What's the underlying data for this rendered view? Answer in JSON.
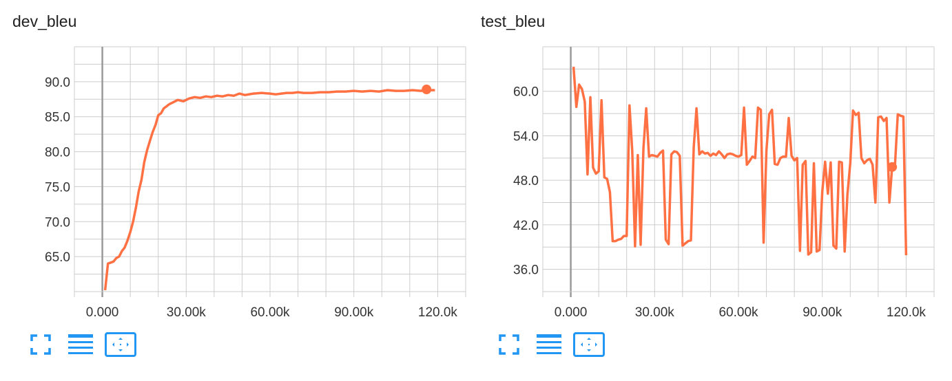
{
  "chart_data": [
    {
      "type": "line",
      "title": "dev_bleu",
      "xlabel": "",
      "ylabel": "",
      "xlim": [
        -10000,
        130000
      ],
      "ylim": [
        60,
        95
      ],
      "x_ticks": [
        0,
        30000,
        60000,
        90000,
        120000
      ],
      "x_tick_labels": [
        "0.000",
        "30.00k",
        "60.00k",
        "90.00k",
        "120.0k"
      ],
      "y_ticks": [
        65,
        70,
        75,
        80,
        85,
        90
      ],
      "y_tick_labels": [
        "65.0",
        "70.0",
        "75.0",
        "80.0",
        "85.0",
        "90.0"
      ],
      "grid": true,
      "series": [
        {
          "color": "#ff7043",
          "x": [
            1000,
            2000,
            4000,
            5000,
            6000,
            7000,
            8000,
            9000,
            10000,
            11000,
            12000,
            13000,
            14000,
            15000,
            16000,
            17000,
            18000,
            19000,
            20000,
            21000,
            22000,
            23000,
            24000,
            25000,
            27000,
            29000,
            31000,
            33000,
            35000,
            37000,
            39000,
            41000,
            43000,
            45000,
            47000,
            49000,
            51000,
            54000,
            57000,
            60000,
            62000,
            64000,
            66000,
            68000,
            70000,
            72000,
            75000,
            78000,
            81000,
            84000,
            87000,
            90000,
            93000,
            96000,
            99000,
            102000,
            105000,
            108000,
            111000,
            114000,
            115500,
            116500,
            119000
          ],
          "y": [
            60.2,
            64.0,
            64.3,
            64.8,
            65.0,
            65.8,
            66.3,
            67.3,
            68.5,
            70.0,
            72.0,
            74.3,
            76.0,
            78.5,
            80.2,
            81.5,
            82.8,
            83.8,
            85.2,
            85.5,
            86.2,
            86.5,
            86.8,
            87.0,
            87.4,
            87.2,
            87.6,
            87.8,
            87.7,
            87.9,
            87.8,
            88.0,
            87.9,
            88.1,
            88.0,
            88.3,
            88.1,
            88.3,
            88.4,
            88.3,
            88.2,
            88.3,
            88.4,
            88.4,
            88.5,
            88.4,
            88.4,
            88.5,
            88.5,
            88.6,
            88.6,
            88.7,
            88.6,
            88.7,
            88.6,
            88.8,
            88.7,
            88.7,
            88.8,
            88.7,
            88.8,
            88.8,
            88.8
          ]
        }
      ],
      "highlight": {
        "x": 116000,
        "y": 88.9
      }
    },
    {
      "type": "line",
      "title": "test_bleu",
      "xlabel": "",
      "ylabel": "",
      "xlim": [
        -10000,
        130000
      ],
      "ylim": [
        33,
        66
      ],
      "x_ticks": [
        0,
        30000,
        60000,
        90000,
        120000
      ],
      "x_tick_labels": [
        "0.000",
        "30.00k",
        "60.00k",
        "90.00k",
        "120.0k"
      ],
      "y_ticks": [
        36,
        42,
        48,
        54,
        60
      ],
      "y_tick_labels": [
        "36.0",
        "42.0",
        "48.0",
        "54.0",
        "60.0"
      ],
      "grid": true,
      "series": [
        {
          "color": "#ff7043",
          "x": [
            1000,
            2000,
            3000,
            4000,
            5000,
            6000,
            7000,
            8000,
            9000,
            10000,
            11000,
            12000,
            13000,
            14000,
            15000,
            16000,
            17000,
            18000,
            19000,
            20000,
            21000,
            22000,
            23000,
            24000,
            25000,
            26000,
            27000,
            28000,
            29000,
            30000,
            31000,
            32000,
            33000,
            34000,
            35000,
            36000,
            37000,
            38000,
            39000,
            40000,
            41000,
            42000,
            43000,
            44000,
            45000,
            46000,
            47000,
            48000,
            49000,
            50000,
            51000,
            52000,
            53000,
            54000,
            55000,
            56000,
            57000,
            58000,
            59000,
            60000,
            61000,
            62000,
            63000,
            64000,
            65000,
            66000,
            67000,
            68000,
            69000,
            70000,
            71000,
            72000,
            73000,
            74000,
            75000,
            76000,
            77000,
            78000,
            79000,
            80000,
            81000,
            82000,
            83000,
            84000,
            85000,
            86000,
            87000,
            88000,
            89000,
            90000,
            91000,
            92000,
            93000,
            94000,
            95000,
            96000,
            97000,
            98000,
            99000,
            100000,
            101000,
            102000,
            103000,
            104000,
            105000,
            106000,
            107000,
            108000,
            109000,
            110000,
            111000,
            112000,
            113000,
            114000,
            115000,
            116000,
            117000,
            118000,
            119000,
            120000
          ],
          "y": [
            63.3,
            57.9,
            60.9,
            60.3,
            58.6,
            48.8,
            59.2,
            49.7,
            48.9,
            49.2,
            58.8,
            48.4,
            48.2,
            46.4,
            39.8,
            39.8,
            40.0,
            40.1,
            40.5,
            40.5,
            58.1,
            52.0,
            39.1,
            51.4,
            39.3,
            52.4,
            57.7,
            51.2,
            51.4,
            51.3,
            51.2,
            51.7,
            52.0,
            40.0,
            39.4,
            51.5,
            51.9,
            51.8,
            51.3,
            39.2,
            39.5,
            39.8,
            39.9,
            52.5,
            57.7,
            51.5,
            51.9,
            51.6,
            51.7,
            51.3,
            51.6,
            51.4,
            51.9,
            51.5,
            51.0,
            51.5,
            51.6,
            51.5,
            51.3,
            51.2,
            51.4,
            57.8,
            50.1,
            50.6,
            51.2,
            51.0,
            57.8,
            57.5,
            39.6,
            52.0,
            56.9,
            57.5,
            50.2,
            50.1,
            51.0,
            51.2,
            51.2,
            56.4,
            51.3,
            50.7,
            51.0,
            38.5,
            50.1,
            50.6,
            38.0,
            38.3,
            50.3,
            38.4,
            38.6,
            46.5,
            50.5,
            46.2,
            50.4,
            39.2,
            38.8,
            50.5,
            50.4,
            38.4,
            46.1,
            50.3,
            57.4,
            56.8,
            57.1,
            51.0,
            50.3,
            50.7,
            50.9,
            50.1,
            45.0,
            56.5,
            56.6,
            56.0,
            56.4,
            45.0,
            49.8,
            50.0,
            56.9,
            56.7,
            56.6,
            37.9
          ]
        }
      ],
      "highlight": {
        "x": 115000,
        "y": 49.8
      }
    }
  ],
  "icons": {
    "expand": "fullscreen-icon",
    "data": "data-lines-icon",
    "fit": "fit-domain-icon"
  },
  "colors": {
    "line": "#ff7043",
    "accent": "#2196f3",
    "grid": "#cccccc",
    "axis": "#999999"
  }
}
